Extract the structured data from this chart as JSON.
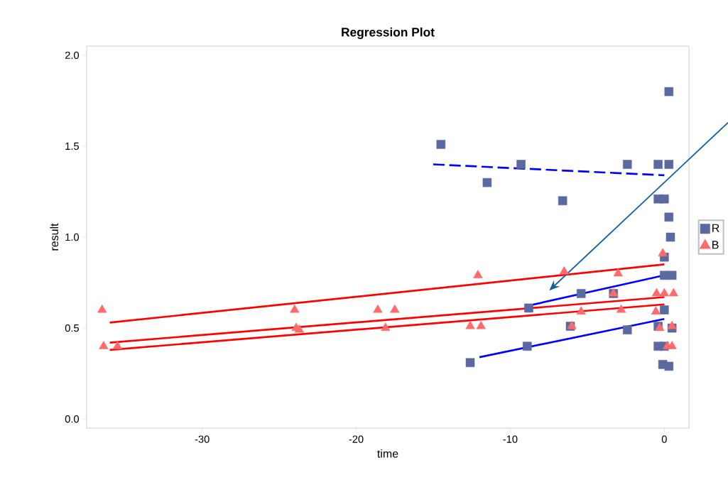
{
  "chart_data": {
    "type": "scatter",
    "title": "Regression Plot",
    "xlabel": "time",
    "ylabel": "result",
    "xlim": [
      -37.5,
      1.6
    ],
    "ylim": [
      -0.05,
      2.05
    ],
    "xticks": [
      -30,
      -20,
      -10,
      0
    ],
    "yticks": [
      {
        "value": 0,
        "label": "0.0"
      },
      {
        "value": 0.5,
        "label": "0.5"
      },
      {
        "value": 1,
        "label": "1.0"
      },
      {
        "value": 1.5,
        "label": "1.5"
      },
      {
        "value": 2,
        "label": "2.0"
      }
    ],
    "grid": false,
    "legend": "right",
    "series": [
      {
        "name": "R",
        "marker": "square",
        "color": "#5a69a0",
        "x": [
          -14.5,
          -11.5,
          -9.3,
          -6.6,
          -2.4,
          -0.4,
          0.3,
          0.3,
          -0.4,
          0.0,
          0.3,
          0.4,
          0.0,
          0.0,
          0.5,
          -5.4,
          -3.3,
          -8.8,
          0.0,
          -6.1,
          -0.4,
          0.5,
          -8.9,
          -2.4,
          -0.4,
          0.0,
          -12.6,
          -0.1,
          0.3
        ],
        "values": [
          1.51,
          1.3,
          1.4,
          1.2,
          1.4,
          1.4,
          1.8,
          1.4,
          1.21,
          1.21,
          1.11,
          1.0,
          0.89,
          0.79,
          0.79,
          0.69,
          0.69,
          0.61,
          0.6,
          0.51,
          0.51,
          0.5,
          0.4,
          0.49,
          0.4,
          0.4,
          0.31,
          0.3,
          0.29
        ]
      },
      {
        "name": "B",
        "marker": "triangle",
        "color": "#ff6b6b",
        "x": [
          -36.5,
          -36.4,
          -35.5,
          -24.0,
          -23.9,
          -23.7,
          -18.6,
          -17.5,
          -18.1,
          -12.1,
          -12.6,
          -11.9,
          -6.5,
          -6.0,
          -5.4,
          -3.3,
          -3.0,
          -2.8,
          -0.1,
          -0.5,
          0.0,
          0.6,
          -0.55,
          -0.3,
          0.5,
          0.2,
          0.5
        ],
        "values": [
          0.6,
          0.4,
          0.4,
          0.6,
          0.5,
          0.49,
          0.6,
          0.6,
          0.5,
          0.79,
          0.51,
          0.51,
          0.81,
          0.51,
          0.59,
          0.69,
          0.8,
          0.6,
          0.91,
          0.69,
          0.69,
          0.69,
          0.59,
          0.5,
          0.51,
          0.4,
          0.4
        ]
      },
      {
        "type": "line",
        "line_style": "dashed",
        "color": "#0000ff",
        "x": [
          -15.0,
          0.0
        ],
        "values": [
          1.4,
          1.34
        ]
      },
      {
        "type": "line",
        "line_style": "solid",
        "color": "#0000ff",
        "x": [
          -9.0,
          0.0
        ],
        "values": [
          0.62,
          0.79
        ]
      },
      {
        "type": "line",
        "line_style": "solid",
        "color": "#0000ff",
        "x": [
          -12.0,
          0.0
        ],
        "values": [
          0.34,
          0.55
        ]
      },
      {
        "type": "line",
        "line_style": "solid",
        "color": "#ff0000",
        "x": [
          -36.0,
          0.0
        ],
        "values": [
          0.53,
          0.85
        ]
      },
      {
        "type": "line",
        "line_style": "solid",
        "color": "#ff0000",
        "x": [
          -36.0,
          0.0
        ],
        "values": [
          0.42,
          0.67
        ]
      },
      {
        "type": "line",
        "line_style": "solid",
        "color": "#ff0000",
        "x": [
          -36.0,
          0.0
        ],
        "values": [
          0.38,
          0.63
        ]
      }
    ]
  }
}
